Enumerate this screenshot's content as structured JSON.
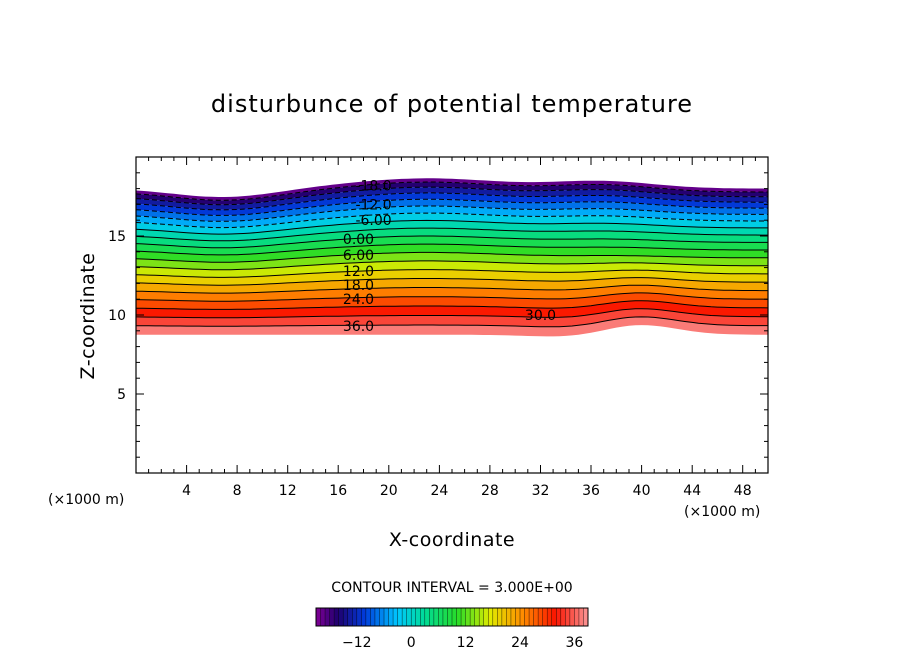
{
  "chart_data": {
    "type": "contour",
    "title": "disturbunce of potential temperature",
    "xlabel": "X-coordinate",
    "ylabel": "Z-coordinate",
    "x_unit": "(×1000 m)",
    "y_unit": "(×1000 m)",
    "xlim": [
      0,
      50
    ],
    "ylim": [
      0,
      20
    ],
    "x_ticks": [
      4,
      8,
      12,
      16,
      20,
      24,
      28,
      32,
      36,
      40,
      44,
      48
    ],
    "x_tick_labels": [
      "4",
      "8",
      "12",
      "16",
      "20",
      "24",
      "28",
      "32",
      "36",
      "40",
      "44",
      "48"
    ],
    "y_ticks": [
      5,
      10,
      15
    ],
    "y_tick_labels": [
      "5",
      "10",
      "15"
    ],
    "contour_interval_text": "CONTOUR INTERVAL = 3.000E+00",
    "contour_interval": 3,
    "value_range": [
      -21,
      39
    ],
    "contour_labels": [
      {
        "text": "-18.0",
        "x": 18.8,
        "z": 18.2
      },
      {
        "text": "-12.0",
        "x": 18.8,
        "z": 17.0
      },
      {
        "text": "-6.00",
        "x": 18.8,
        "z": 16.0
      },
      {
        "text": "0.00",
        "x": 17.6,
        "z": 14.8
      },
      {
        "text": "6.00",
        "x": 17.6,
        "z": 13.8
      },
      {
        "text": "12.0",
        "x": 17.6,
        "z": 12.8
      },
      {
        "text": "18.0",
        "x": 17.6,
        "z": 11.9
      },
      {
        "text": "24.0",
        "x": 17.6,
        "z": 11.0
      },
      {
        "text": "30.0",
        "x": 32.0,
        "z": 10.0
      },
      {
        "text": "36.0",
        "x": 17.6,
        "z": 9.3
      }
    ],
    "colorbar": {
      "ticks": [
        -12,
        0,
        12,
        24,
        36
      ],
      "tick_labels": [
        "−12",
        "0",
        "12",
        "24",
        "36"
      ]
    }
  }
}
